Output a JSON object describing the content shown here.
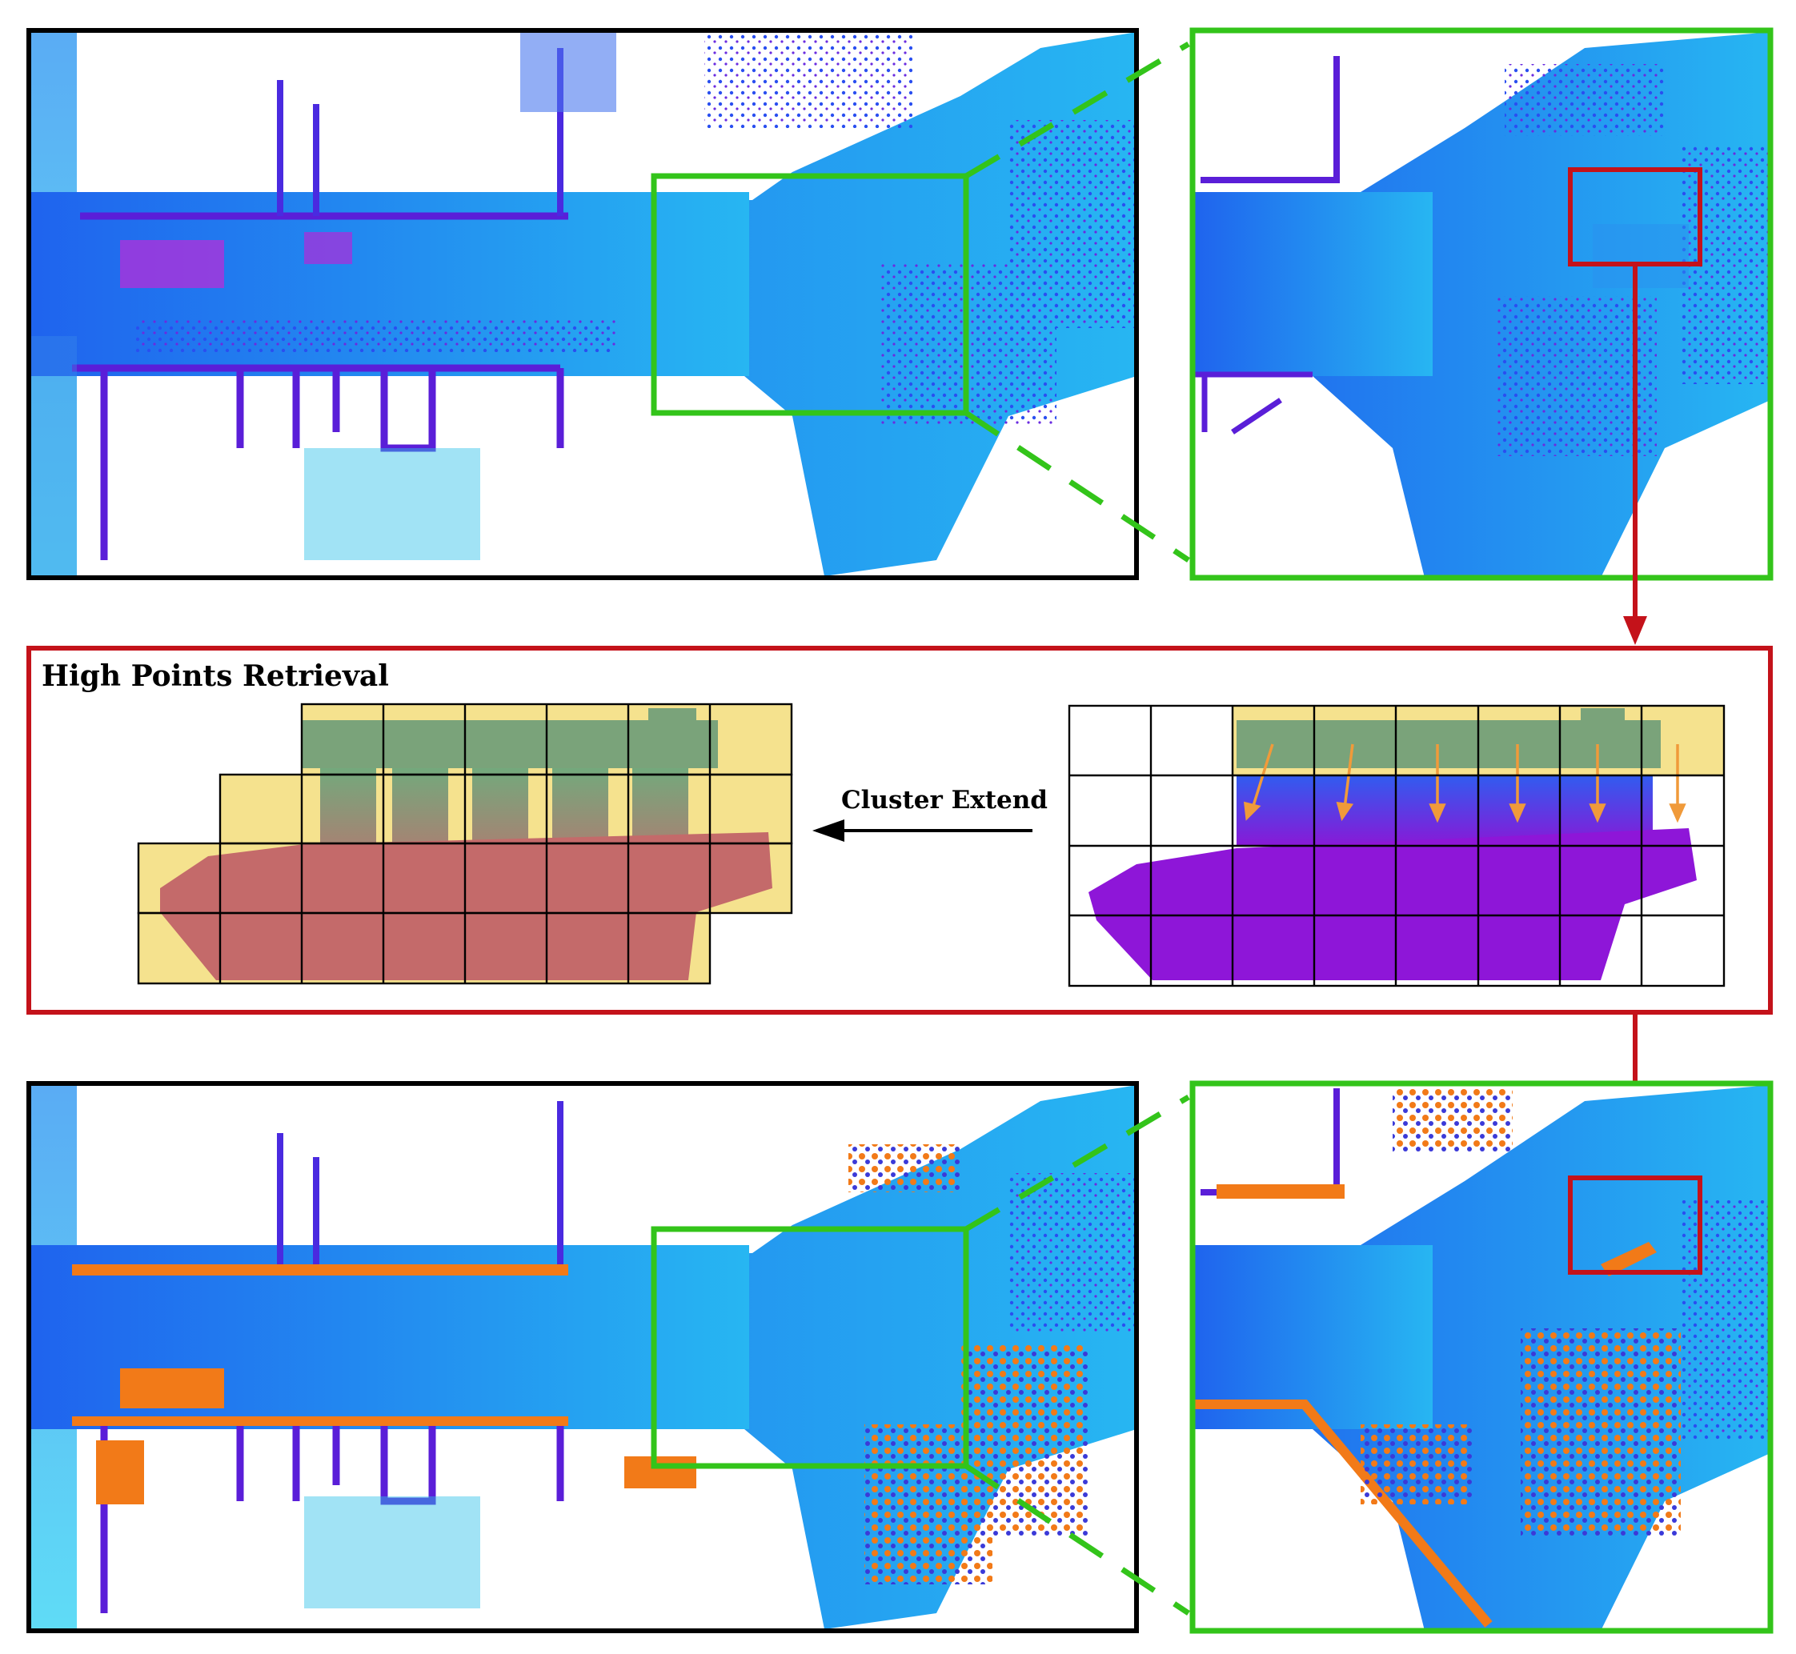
{
  "retrieval_panel": {
    "title": "High Points Retrieval",
    "operation_label": "Cluster Extend"
  },
  "colors": {
    "overview_frame": "#000000",
    "zoom_frame": "#33c41a",
    "retrieval_frame": "#c4121a",
    "cluster_fill": "#f5e28e",
    "high_points": "#7aa37a",
    "low_points_extended": "#c46a6a",
    "low_points_original": "#8e16d8",
    "extend_arrow": "#f09a3a",
    "retrieved_points": "#f27a18",
    "ground": "#1e7ff0",
    "ground_light": "#28c4f0"
  },
  "icons": [
    "arrow-left-icon",
    "arrow-down-icon",
    "grid-cell-icon"
  ]
}
